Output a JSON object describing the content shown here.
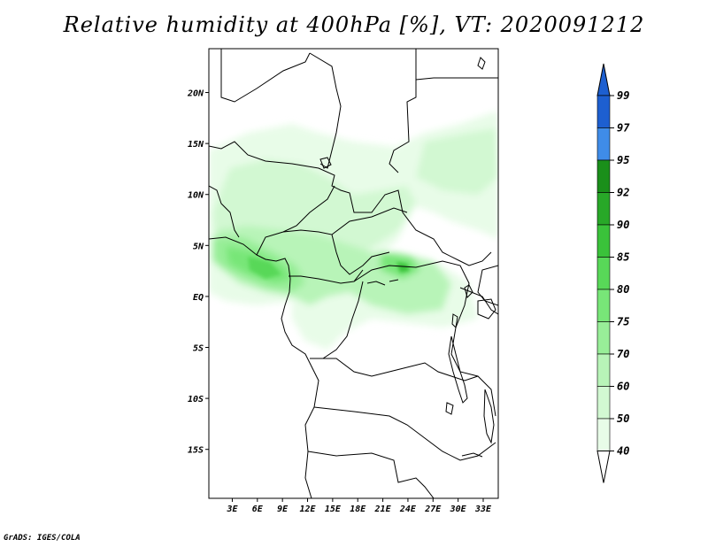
{
  "title": "Relative humidity at 400hPa [%], VT: 2020091212",
  "credit": "GrADS: IGES/COLA",
  "map": {
    "lat_labels": [
      "20N",
      "15N",
      "10N",
      "5N",
      "EQ",
      "5S",
      "10S",
      "15S"
    ],
    "lat_values": [
      20,
      15,
      10,
      5,
      0,
      -5,
      -10,
      -15
    ],
    "lon_labels": [
      "3E",
      "6E",
      "9E",
      "12E",
      "15E",
      "18E",
      "21E",
      "24E",
      "27E",
      "30E",
      "33E"
    ],
    "lon_values": [
      3,
      6,
      9,
      12,
      15,
      18,
      21,
      24,
      27,
      30,
      33
    ],
    "lat_range": [
      -19.8,
      24.3
    ],
    "lon_range": [
      0.2,
      34.8
    ]
  },
  "colorbar": {
    "levels": [
      "99",
      "97",
      "95",
      "92",
      "90",
      "85",
      "80",
      "75",
      "70",
      "60",
      "50",
      "40"
    ],
    "colors": {
      "99": "#1d5fd0",
      "97": "#3f8ce8",
      "95": "#1a8f1a",
      "92": "#28a828",
      "90": "#3ac23a",
      "85": "#58d858",
      "80": "#78e678",
      "75": "#98ee98",
      "70": "#b8f4b8",
      "60": "#d2f8d2",
      "50": "#e8fce8",
      "40": "#ffffff"
    }
  }
}
